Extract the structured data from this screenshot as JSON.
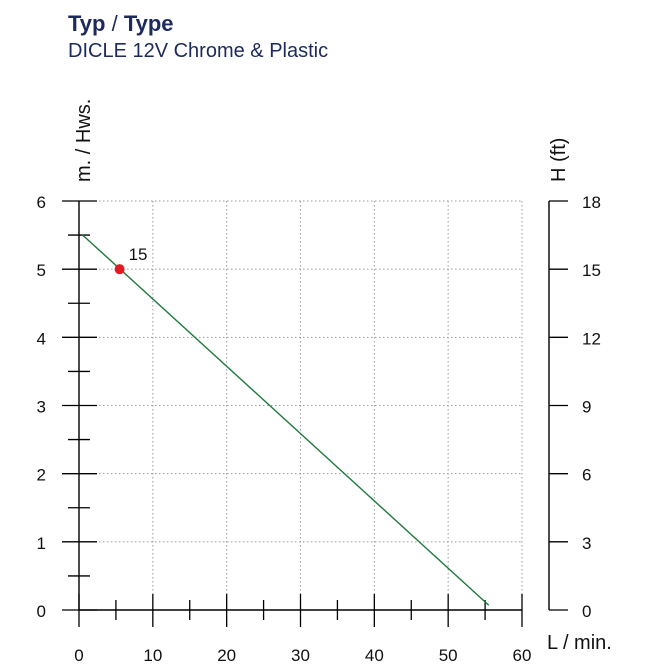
{
  "header": {
    "title_a": "Typ",
    "title_sep": " / ",
    "title_b": "Type",
    "subtitle": "DICLE 12V Chrome & Plastic"
  },
  "chart_data": {
    "type": "line",
    "title": "Typ / Type",
    "subtitle": "DICLE 12V Chrome & Plastic",
    "xlabel": "L / min.",
    "ylabel": "m. / Hws.",
    "ylabel_right": "H (ft)",
    "xlim": [
      0,
      60
    ],
    "ylim": [
      0,
      6
    ],
    "ylim_right": [
      0,
      18
    ],
    "x_ticks": [
      "0",
      "10",
      "20",
      "30",
      "40",
      "50",
      "60"
    ],
    "y_ticks": [
      "0",
      "1",
      "2",
      "3",
      "4",
      "5",
      "6"
    ],
    "y_ticks_right": [
      "0",
      "3",
      "6",
      "9",
      "12",
      "15",
      "18"
    ],
    "grid": true,
    "series": [
      {
        "x": [
          0.5,
          55.5
        ],
        "y": [
          5.5,
          0.07
        ],
        "color": "#1f7a3a"
      }
    ],
    "annotations": [
      {
        "x": 5.5,
        "y": 5.0,
        "label": "15",
        "color": "#e01b24"
      }
    ]
  }
}
